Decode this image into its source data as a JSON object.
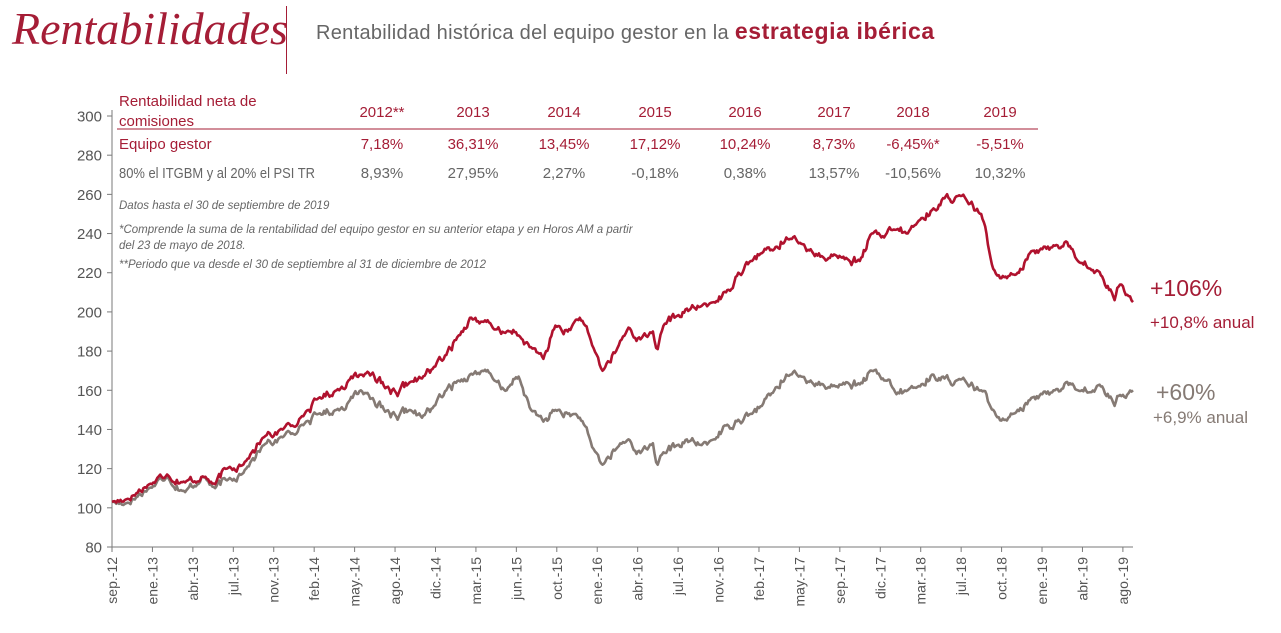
{
  "header": {
    "title": "Rentabilidades",
    "subtitle_prefix": "Rentabilidad histórica del equipo gestor en la",
    "subtitle_emphasis": "estrategia ibérica"
  },
  "colors": {
    "accent": "#a51d36",
    "gestor": "#b0122e",
    "index": "#857a74",
    "text_gray": "#666666"
  },
  "returns_table": {
    "header_label": [
      "Rentabilidad neta de",
      "comisiones"
    ],
    "years": [
      "2012**",
      "2013",
      "2014",
      "2015",
      "2016",
      "2017",
      "2018",
      "2019"
    ],
    "rows": [
      {
        "label": "Equipo gestor",
        "values": [
          "7,18%",
          "36,31%",
          "13,45%",
          "17,12%",
          "10,24%",
          "8,73%",
          "-6,45%*",
          "-5,51%"
        ]
      },
      {
        "label": "80% el ITGBM y al 20% el PSI TR",
        "values": [
          "8,93%",
          "27,95%",
          "2,27%",
          "-0,18%",
          "0,38%",
          "13,57%",
          "-10,56%",
          "10,32%"
        ]
      }
    ]
  },
  "notes": [
    "Datos hasta el 30 de septiembre de 2019",
    "*Comprende la suma de la rentabilidad del equipo gestor en su anterior etapa y en Horos AM a partir",
    "del 23 de mayo de 2018.",
    "**Periodo que va desde el 30 de septiembre al 31 de diciembre de 2012"
  ],
  "end_labels": {
    "gestor": {
      "total": "+106%",
      "annual": "+10,8% anual"
    },
    "index": {
      "total": "+60%",
      "annual": "+6,9% anual"
    }
  },
  "chart_data": {
    "type": "line",
    "title": "",
    "xlabel": "",
    "ylabel": "",
    "ylim": [
      80,
      300
    ],
    "y_ticks": [
      80,
      100,
      120,
      140,
      160,
      180,
      200,
      220,
      240,
      260,
      280,
      300
    ],
    "x_ticks": [
      "sep.-12",
      "ene.-13",
      "abr.-13",
      "jul.-13",
      "nov.-13",
      "feb.-14",
      "may.-14",
      "ago.-14",
      "dic.-14",
      "mar.-15",
      "jun.-15",
      "oct.-15",
      "ene.-16",
      "abr.-16",
      "jul.-16",
      "nov.-16",
      "feb.-17",
      "may.-17",
      "sep.-17",
      "dic.-17",
      "mar.-18",
      "jul.-18",
      "oct.-18",
      "ene.-19",
      "abr.-19",
      "ago.-19"
    ],
    "x_range": [
      "2012-09-30",
      "2019-09-30"
    ],
    "grid": false,
    "legend": "none",
    "series": [
      {
        "key": "gestor",
        "x": [
          "2012-09-30",
          "2012-11-01",
          "2013-01-01",
          "2013-02-15",
          "2013-04-01",
          "2013-05-15",
          "2013-06-15",
          "2013-07-15",
          "2013-09-01",
          "2013-10-15",
          "2013-12-01",
          "2014-01-15",
          "2014-03-01",
          "2014-04-15",
          "2014-05-15",
          "2014-06-15",
          "2014-07-15",
          "2014-08-15",
          "2014-09-15",
          "2014-10-15",
          "2014-11-15",
          "2014-12-15",
          "2015-01-15",
          "2015-02-15",
          "2015-03-15",
          "2015-04-15",
          "2015-05-15",
          "2015-06-15",
          "2015-07-15",
          "2015-08-15",
          "2015-09-15",
          "2015-10-15",
          "2015-11-15",
          "2015-12-15",
          "2016-01-15",
          "2016-02-10",
          "2016-03-15",
          "2016-04-15",
          "2016-05-15",
          "2016-06-15",
          "2016-06-27",
          "2016-07-15",
          "2016-08-15",
          "2016-09-15",
          "2016-10-15",
          "2016-11-15",
          "2016-12-15",
          "2017-01-15",
          "2017-02-15",
          "2017-03-15",
          "2017-04-15",
          "2017-05-15",
          "2017-06-15",
          "2017-07-15",
          "2017-08-15",
          "2017-09-15",
          "2017-10-15",
          "2017-11-15",
          "2017-12-15",
          "2018-01-15",
          "2018-02-15",
          "2018-03-15",
          "2018-04-15",
          "2018-05-15",
          "2018-06-15",
          "2018-07-15",
          "2018-08-15",
          "2018-09-15",
          "2018-10-15",
          "2018-11-15",
          "2018-12-15",
          "2019-01-15",
          "2019-02-15",
          "2019-03-15",
          "2019-04-15",
          "2019-05-15",
          "2019-06-15",
          "2019-07-15",
          "2019-08-15",
          "2019-09-01",
          "2019-09-30"
        ],
        "values": [
          103,
          104,
          112,
          117,
          113,
          116,
          112,
          120,
          124,
          136,
          140,
          146,
          156,
          160,
          165,
          168,
          169,
          161,
          157,
          164,
          166,
          172,
          178,
          188,
          197,
          195,
          191,
          190,
          188,
          182,
          176,
          193,
          190,
          197,
          183,
          170,
          180,
          192,
          186,
          190,
          181,
          194,
          198,
          201,
          203,
          205,
          210,
          220,
          226,
          230,
          232,
          238,
          235,
          232,
          228,
          229,
          227,
          226,
          240,
          238,
          242,
          240,
          247,
          252,
          258,
          259,
          255,
          250,
          222,
          218,
          220,
          230,
          232,
          234,
          236,
          226,
          222,
          218,
          206,
          214,
          205
        ]
      },
      {
        "key": "index",
        "x": [
          "2012-09-30",
          "2012-11-01",
          "2013-01-01",
          "2013-02-15",
          "2013-04-01",
          "2013-05-15",
          "2013-06-15",
          "2013-07-15",
          "2013-09-01",
          "2013-10-15",
          "2013-12-01",
          "2014-01-15",
          "2014-03-01",
          "2014-04-15",
          "2014-05-15",
          "2014-06-15",
          "2014-07-15",
          "2014-08-15",
          "2014-09-15",
          "2014-10-15",
          "2014-11-15",
          "2014-12-15",
          "2015-01-15",
          "2015-02-15",
          "2015-03-15",
          "2015-04-15",
          "2015-05-15",
          "2015-06-15",
          "2015-07-15",
          "2015-08-15",
          "2015-09-15",
          "2015-10-15",
          "2015-11-15",
          "2015-12-15",
          "2016-01-15",
          "2016-02-10",
          "2016-03-15",
          "2016-04-15",
          "2016-05-15",
          "2016-06-15",
          "2016-06-27",
          "2016-07-15",
          "2016-08-15",
          "2016-09-15",
          "2016-10-15",
          "2016-11-15",
          "2016-12-15",
          "2017-01-15",
          "2017-02-15",
          "2017-03-15",
          "2017-04-15",
          "2017-05-15",
          "2017-06-15",
          "2017-07-15",
          "2017-08-15",
          "2017-09-15",
          "2017-10-15",
          "2017-11-15",
          "2017-12-15",
          "2018-01-15",
          "2018-02-15",
          "2018-03-15",
          "2018-04-15",
          "2018-05-15",
          "2018-06-15",
          "2018-07-15",
          "2018-08-15",
          "2018-09-15",
          "2018-10-15",
          "2018-11-15",
          "2018-12-15",
          "2019-01-15",
          "2019-02-15",
          "2019-03-15",
          "2019-04-15",
          "2019-05-15",
          "2019-06-15",
          "2019-07-15",
          "2019-08-15",
          "2019-09-01",
          "2019-09-30"
        ],
        "values": [
          103,
          102,
          110,
          116,
          108,
          116,
          110,
          114,
          120,
          132,
          136,
          142,
          148,
          150,
          154,
          160,
          156,
          149,
          145,
          150,
          146,
          152,
          160,
          165,
          168,
          170,
          165,
          160,
          167,
          150,
          144,
          150,
          148,
          146,
          131,
          122,
          130,
          135,
          128,
          133,
          122,
          128,
          132,
          134,
          132,
          135,
          142,
          145,
          148,
          152,
          160,
          168,
          167,
          165,
          163,
          162,
          164,
          163,
          170,
          165,
          158,
          160,
          162,
          168,
          166,
          165,
          162,
          160,
          150,
          145,
          150,
          155,
          158,
          160,
          164,
          160,
          159,
          162,
          152,
          157,
          160
        ]
      }
    ]
  }
}
